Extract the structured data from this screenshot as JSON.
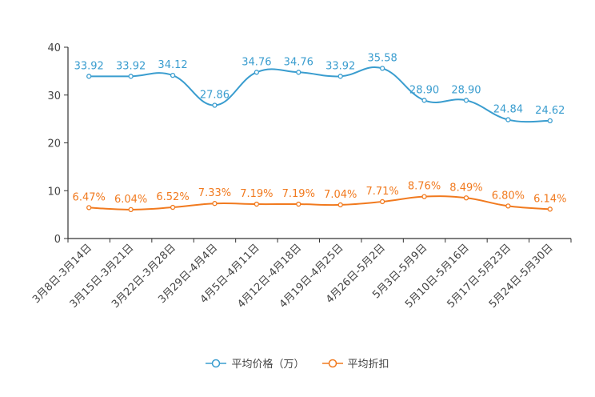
{
  "chart_data": {
    "type": "line",
    "title": "",
    "xlabel": "",
    "ylabel": "",
    "ylim": [
      0,
      40
    ],
    "yticks": [
      0,
      10,
      20,
      30,
      40
    ],
    "grid": false,
    "legend_position": "bottom-center",
    "categories": [
      "3月8日-3月14日",
      "3月15日-3月21日",
      "3月22日-3月28日",
      "3月29日-4月4日",
      "4月5日-4月11日",
      "4月12日-4月18日",
      "4月19日-4月25日",
      "4月26日-5月2日",
      "5月3日-5月9日",
      "5月10日-5月16日",
      "5月17日-5月23日",
      "5月24日-5月30日"
    ],
    "series": [
      {
        "name": "平均价格（万）",
        "color": "#3a9dcf",
        "values": [
          33.92,
          33.92,
          34.12,
          27.86,
          34.76,
          34.76,
          33.92,
          35.58,
          28.9,
          28.9,
          24.84,
          24.62
        ],
        "labels": [
          "33.92",
          "33.92",
          "34.12",
          "27.86",
          "34.76",
          "34.76",
          "33.92",
          "35.58",
          "28.90",
          "28.90",
          "24.84",
          "24.62"
        ]
      },
      {
        "name": "平均折扣",
        "color": "#f17a1f",
        "values": [
          6.47,
          6.04,
          6.52,
          7.33,
          7.19,
          7.19,
          7.04,
          7.71,
          8.76,
          8.49,
          6.8,
          6.14
        ],
        "labels": [
          "6.47%",
          "6.04%",
          "6.52%",
          "7.33%",
          "7.19%",
          "7.19%",
          "7.04%",
          "7.71%",
          "8.76%",
          "8.49%",
          "6.80%",
          "6.14%"
        ]
      }
    ]
  }
}
